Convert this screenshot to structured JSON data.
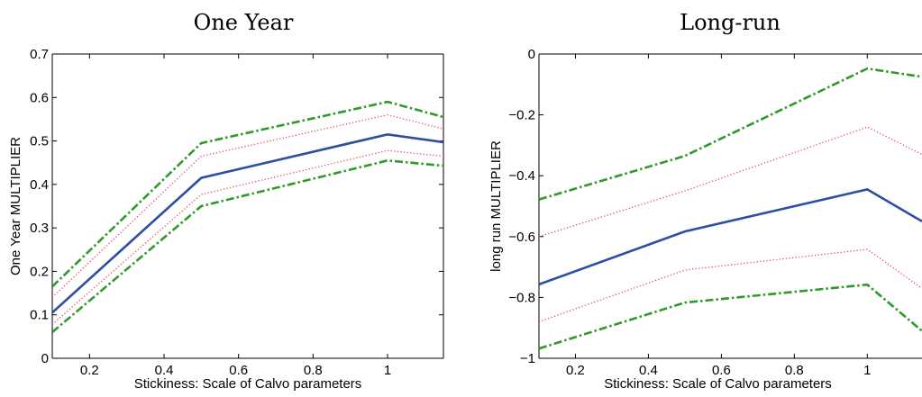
{
  "colors": {
    "estimate": "#2e4ea3",
    "inner_band": "#e8454a",
    "outer_band": "#2f9a2a"
  },
  "chart_data": [
    {
      "type": "line",
      "title": "One Year",
      "xlabel": "Stickiness: Scale of Calvo parameters",
      "ylabel": "One Year MULTIPLIER",
      "xlim": [
        0.1,
        1.15
      ],
      "ylim": [
        0,
        0.7
      ],
      "xticks": [
        0.2,
        0.4,
        0.6,
        0.8,
        1
      ],
      "xtick_labels": [
        "0.2",
        "0.4",
        "0.6",
        "0.8",
        "1"
      ],
      "yticks": [
        0,
        0.1,
        0.2,
        0.3,
        0.4,
        0.5,
        0.6,
        0.7
      ],
      "ytick_labels": [
        "0",
        "0.1",
        "0.2",
        "0.3",
        "0.4",
        "0.5",
        "0.6",
        "0.7"
      ],
      "x": [
        0.1,
        0.5,
        1.0,
        1.15
      ],
      "series": [
        {
          "style": "outer_band",
          "values": [
            0.165,
            0.495,
            0.59,
            0.555
          ]
        },
        {
          "style": "inner_band",
          "values": [
            0.14,
            0.465,
            0.56,
            0.528
          ]
        },
        {
          "style": "estimate",
          "values": [
            0.105,
            0.415,
            0.515,
            0.497
          ]
        },
        {
          "style": "inner_band",
          "values": [
            0.078,
            0.377,
            0.478,
            0.465
          ]
        },
        {
          "style": "outer_band",
          "values": [
            0.06,
            0.35,
            0.455,
            0.443
          ]
        }
      ]
    },
    {
      "type": "line",
      "title": "Long-run",
      "xlabel": "Stickiness: Scale of Calvo parameters",
      "ylabel": "long run MULTIPLIER",
      "xlim": [
        0.1,
        1.15
      ],
      "ylim": [
        -1,
        0
      ],
      "xticks": [
        0.2,
        0.4,
        0.6,
        0.8,
        1
      ],
      "xtick_labels": [
        "0.2",
        "0.4",
        "0.6",
        "0.8",
        "1"
      ],
      "yticks": [
        -1,
        -0.8,
        -0.6,
        -0.4,
        -0.2,
        0
      ],
      "ytick_labels": [
        "−1",
        "−0.8",
        "−0.6",
        "−0.4",
        "−0.2",
        "0"
      ],
      "x": [
        0.1,
        0.5,
        1.0,
        1.15
      ],
      "series": [
        {
          "style": "outer_band",
          "values": [
            -0.478,
            -0.335,
            -0.048,
            -0.075
          ]
        },
        {
          "style": "inner_band",
          "values": [
            -0.6,
            -0.45,
            -0.24,
            -0.33
          ]
        },
        {
          "style": "estimate",
          "values": [
            -0.757,
            -0.583,
            -0.445,
            -0.55
          ]
        },
        {
          "style": "inner_band",
          "values": [
            -0.88,
            -0.71,
            -0.642,
            -0.77
          ]
        },
        {
          "style": "outer_band",
          "values": [
            -0.968,
            -0.817,
            -0.758,
            -0.91
          ]
        }
      ]
    }
  ]
}
